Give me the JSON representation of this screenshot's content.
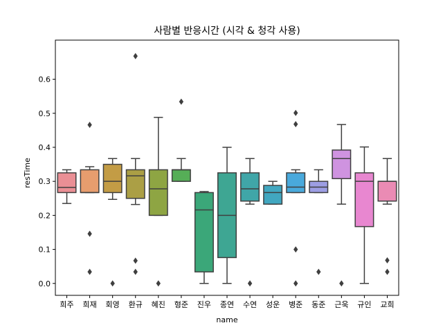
{
  "chart_data": {
    "type": "box",
    "title": "사람별 반응시간 (시각 & 청각 사용)",
    "xlabel": "name",
    "ylabel": "resTime",
    "ylim": [
      -0.035,
      0.715
    ],
    "yticks": [
      0.0,
      0.1,
      0.2,
      0.3,
      0.4,
      0.5,
      0.6
    ],
    "ytick_labels": [
      "0.0",
      "0.1",
      "0.2",
      "0.3",
      "0.4",
      "0.5",
      "0.6"
    ],
    "grid": false,
    "legend": false,
    "categories": [
      "희주",
      "희재",
      "회영",
      "환규",
      "혜진",
      "형준",
      "진우",
      "종연",
      "수연",
      "성운",
      "병준",
      "동준",
      "근욱",
      "규인",
      "교희"
    ],
    "series": [
      {
        "q1": 0.267,
        "median": 0.282,
        "q3": 0.325,
        "whisker_low": 0.235,
        "whisker_high": 0.334,
        "outliers": [],
        "color": "#ea8f95"
      },
      {
        "q1": 0.267,
        "median": 0.267,
        "q3": 0.334,
        "whisker_low": 0.267,
        "whisker_high": 0.343,
        "outliers": [
          0.466,
          0.146,
          0.034
        ],
        "color": "#e79d6e"
      },
      {
        "q1": 0.267,
        "median": 0.3,
        "q3": 0.35,
        "whisker_low": 0.247,
        "whisker_high": 0.367,
        "outliers": [
          0.0
        ],
        "color": "#c39c45"
      },
      {
        "q1": 0.25,
        "median": 0.316,
        "q3": 0.334,
        "whisker_low": 0.232,
        "whisker_high": 0.367,
        "outliers": [
          0.668,
          0.067,
          0.034
        ],
        "color": "#ab9f45"
      },
      {
        "q1": 0.2,
        "median": 0.278,
        "q3": 0.334,
        "whisker_low": 0.2,
        "whisker_high": 0.488,
        "outliers": [
          0.0
        ],
        "color": "#8ea543"
      },
      {
        "q1": 0.3,
        "median": 0.334,
        "q3": 0.334,
        "whisker_low": 0.3,
        "whisker_high": 0.367,
        "outliers": [
          0.534
        ],
        "color": "#56ae57"
      },
      {
        "q1": 0.034,
        "median": 0.216,
        "q3": 0.267,
        "whisker_low": 0.0,
        "whisker_high": 0.27,
        "outliers": [],
        "color": "#3ba779"
      },
      {
        "q1": 0.076,
        "median": 0.2,
        "q3": 0.325,
        "whisker_low": 0.0,
        "whisker_high": 0.4,
        "outliers": [],
        "color": "#3ea693"
      },
      {
        "q1": 0.242,
        "median": 0.278,
        "q3": 0.325,
        "whisker_low": 0.233,
        "whisker_high": 0.367,
        "outliers": [
          0.0
        ],
        "color": "#40a6a8"
      },
      {
        "q1": 0.233,
        "median": 0.267,
        "q3": 0.288,
        "whisker_low": 0.233,
        "whisker_high": 0.3,
        "outliers": [],
        "color": "#41a7c0"
      },
      {
        "q1": 0.267,
        "median": 0.283,
        "q3": 0.325,
        "whisker_low": 0.267,
        "whisker_high": 0.334,
        "outliers": [
          0.501,
          0.468,
          0.1,
          0.0
        ],
        "color": "#49a9dc"
      },
      {
        "q1": 0.267,
        "median": 0.283,
        "q3": 0.3,
        "whisker_low": 0.267,
        "whisker_high": 0.334,
        "outliers": [
          0.034
        ],
        "color": "#9d9ee3"
      },
      {
        "q1": 0.308,
        "median": 0.367,
        "q3": 0.392,
        "whisker_low": 0.233,
        "whisker_high": 0.467,
        "outliers": [
          0.0
        ],
        "color": "#cf93e0"
      },
      {
        "q1": 0.167,
        "median": 0.3,
        "q3": 0.325,
        "whisker_low": 0.0,
        "whisker_high": 0.401,
        "outliers": [],
        "color": "#e887d0"
      },
      {
        "q1": 0.242,
        "median": 0.3,
        "q3": 0.3,
        "whisker_low": 0.233,
        "whisker_high": 0.367,
        "outliers": [
          0.068,
          0.034
        ],
        "color": "#ea8bb4"
      }
    ]
  }
}
